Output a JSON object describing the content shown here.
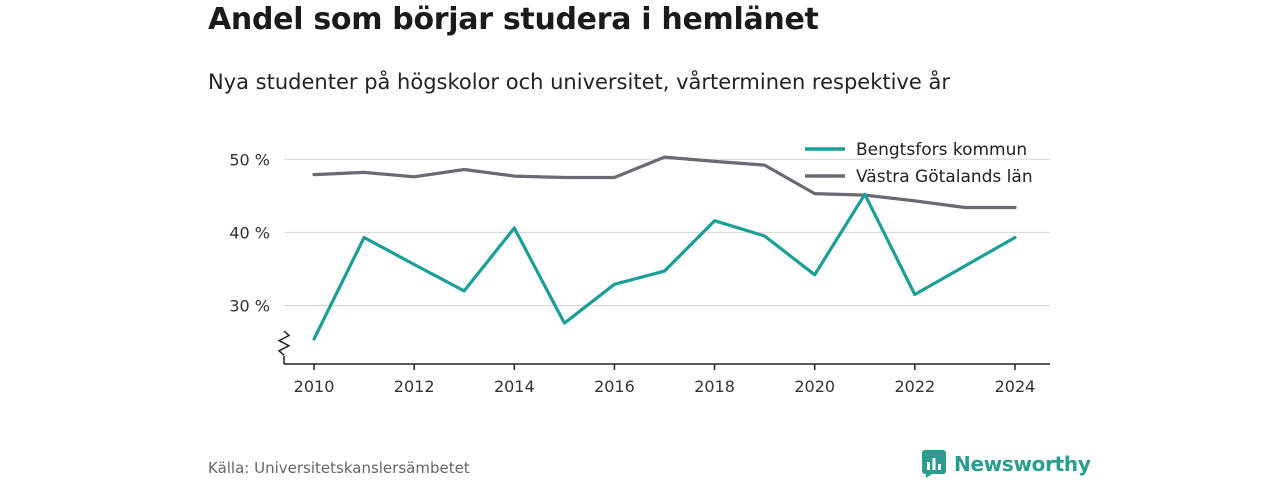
{
  "header": {
    "title": "Andel som börjar studera i hemlänet",
    "subtitle": "Nya studenter på högskolor och universitet, vårterminen respektive år"
  },
  "footer": {
    "source": "Källa: Universitetskanslersämbetet",
    "brand": "Newsworthy"
  },
  "colors": {
    "bengtsfors": "#1a9e96",
    "vastra_gotaland": "#6b6a70",
    "brand": "#2a9d8f"
  },
  "chart_data": {
    "type": "line",
    "title": "Andel som börjar studera i hemlänet",
    "subtitle": "Nya studenter på högskolor och universitet, vårterminen respektive år",
    "xlabel": "",
    "ylabel": "",
    "x": [
      2010,
      2011,
      2012,
      2013,
      2014,
      2015,
      2016,
      2017,
      2018,
      2019,
      2020,
      2021,
      2022,
      2023,
      2024
    ],
    "xticks": [
      "2010",
      "2012",
      "2014",
      "2016",
      "2018",
      "2020",
      "2022",
      "2024"
    ],
    "yticks": [
      "30 %",
      "40 %",
      "50 %"
    ],
    "ylim": [
      22,
      54
    ],
    "grid": true,
    "legend_position": "top-right",
    "series": [
      {
        "name": "Bengtsfors kommun",
        "color": "#1a9e96",
        "values": [
          25.4,
          39.3,
          35.6,
          32.0,
          40.6,
          27.6,
          32.9,
          34.7,
          41.6,
          39.5,
          34.2,
          45.2,
          31.5,
          35.4,
          39.3
        ]
      },
      {
        "name": "Västra Götalands län",
        "color": "#6b6a70",
        "values": [
          47.9,
          48.2,
          47.6,
          48.6,
          47.7,
          47.5,
          47.5,
          50.3,
          49.7,
          49.2,
          45.3,
          45.1,
          44.3,
          43.4,
          43.4
        ]
      }
    ]
  }
}
